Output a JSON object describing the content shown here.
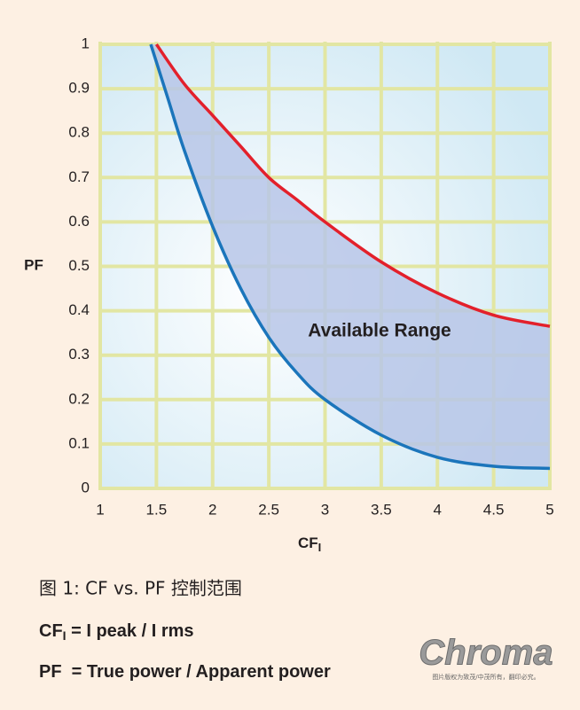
{
  "chart_data": {
    "type": "line",
    "x_label": {
      "text": "CF",
      "subscript": "I"
    },
    "y_label": "PF",
    "annotation": "Available Range",
    "xlim": [
      1,
      5
    ],
    "xticks": [
      1,
      1.5,
      2,
      2.5,
      3,
      3.5,
      4,
      4.5,
      5
    ],
    "ylim": [
      0,
      1
    ],
    "yticks": [
      0,
      0.1,
      0.2,
      0.3,
      0.4,
      0.5,
      0.6,
      0.7,
      0.8,
      0.9,
      1
    ],
    "grid": true,
    "series": [
      {
        "color": "#e3202b",
        "x": [
          1.5,
          1.75,
          2,
          2.25,
          2.5,
          2.75,
          3,
          3.5,
          4,
          4.5,
          5
        ],
        "values": [
          1,
          0.91,
          0.84,
          0.77,
          0.7,
          0.65,
          0.6,
          0.51,
          0.44,
          0.39,
          0.365
        ]
      },
      {
        "color": "#1b75bb",
        "x": [
          1.45,
          1.6,
          1.75,
          2,
          2.25,
          2.5,
          2.75,
          3,
          3.5,
          4,
          4.5,
          5
        ],
        "values": [
          1,
          0.88,
          0.76,
          0.59,
          0.45,
          0.34,
          0.26,
          0.2,
          0.12,
          0.07,
          0.05,
          0.045
        ]
      }
    ]
  },
  "caption": "图 1: CF vs. PF 控制范围",
  "formulas": [
    {
      "lhs": "CF",
      "subscript": "I",
      "rhs": " = I peak / I rms"
    },
    {
      "lhs": "PF",
      "rhs": "  = True power / Apparent power"
    }
  ],
  "logo": {
    "name": "Chroma",
    "note": "图片版权为致茂/中茂所有，翻印必究。"
  }
}
